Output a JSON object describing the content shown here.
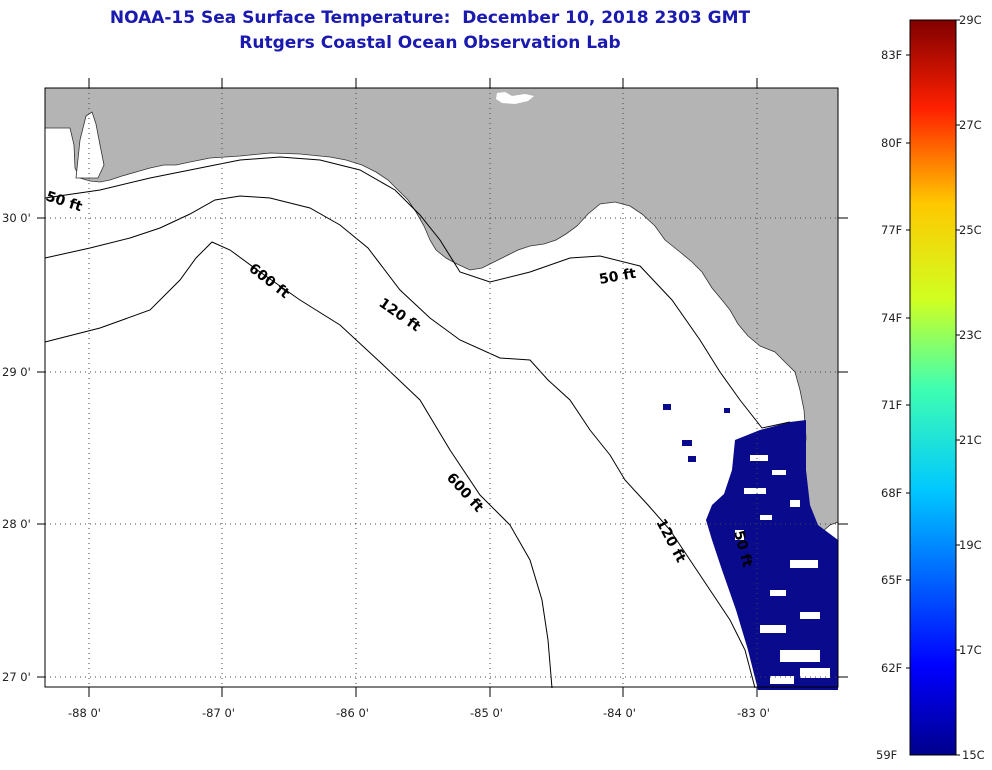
{
  "title": {
    "line1": "NOAA-15 Sea Surface Temperature:  December 10, 2018 2303 GMT",
    "line2": "Rutgers Coastal Ocean Observation Lab"
  },
  "map": {
    "latitude_ticks": [
      "30 0'",
      "29 0'",
      "28 0'",
      "27 0'"
    ],
    "longitude_ticks": [
      "-88 0'",
      "-87 0'",
      "-86 0'",
      "-85 0'",
      "-84 0'",
      "-83 0'"
    ],
    "contour_labels": [
      "50 ft",
      "600 ft",
      "120 ft",
      "50 ft",
      "600 ft",
      "120 ft",
      "50 ft"
    ],
    "colors": {
      "land": "#b4b4b4",
      "ocean": "#ffffff",
      "sst_data": "#0a0a8c"
    }
  },
  "colorbar": {
    "fahrenheit_labels": [
      "83F",
      "80F",
      "77F",
      "74F",
      "71F",
      "68F",
      "65F",
      "62F",
      "59F"
    ],
    "celsius_labels": [
      "29C",
      "27C",
      "25C",
      "23C",
      "21C",
      "19C",
      "17C",
      "15C"
    ],
    "range_f": [
      59,
      85
    ],
    "range_c": [
      15,
      29
    ]
  }
}
